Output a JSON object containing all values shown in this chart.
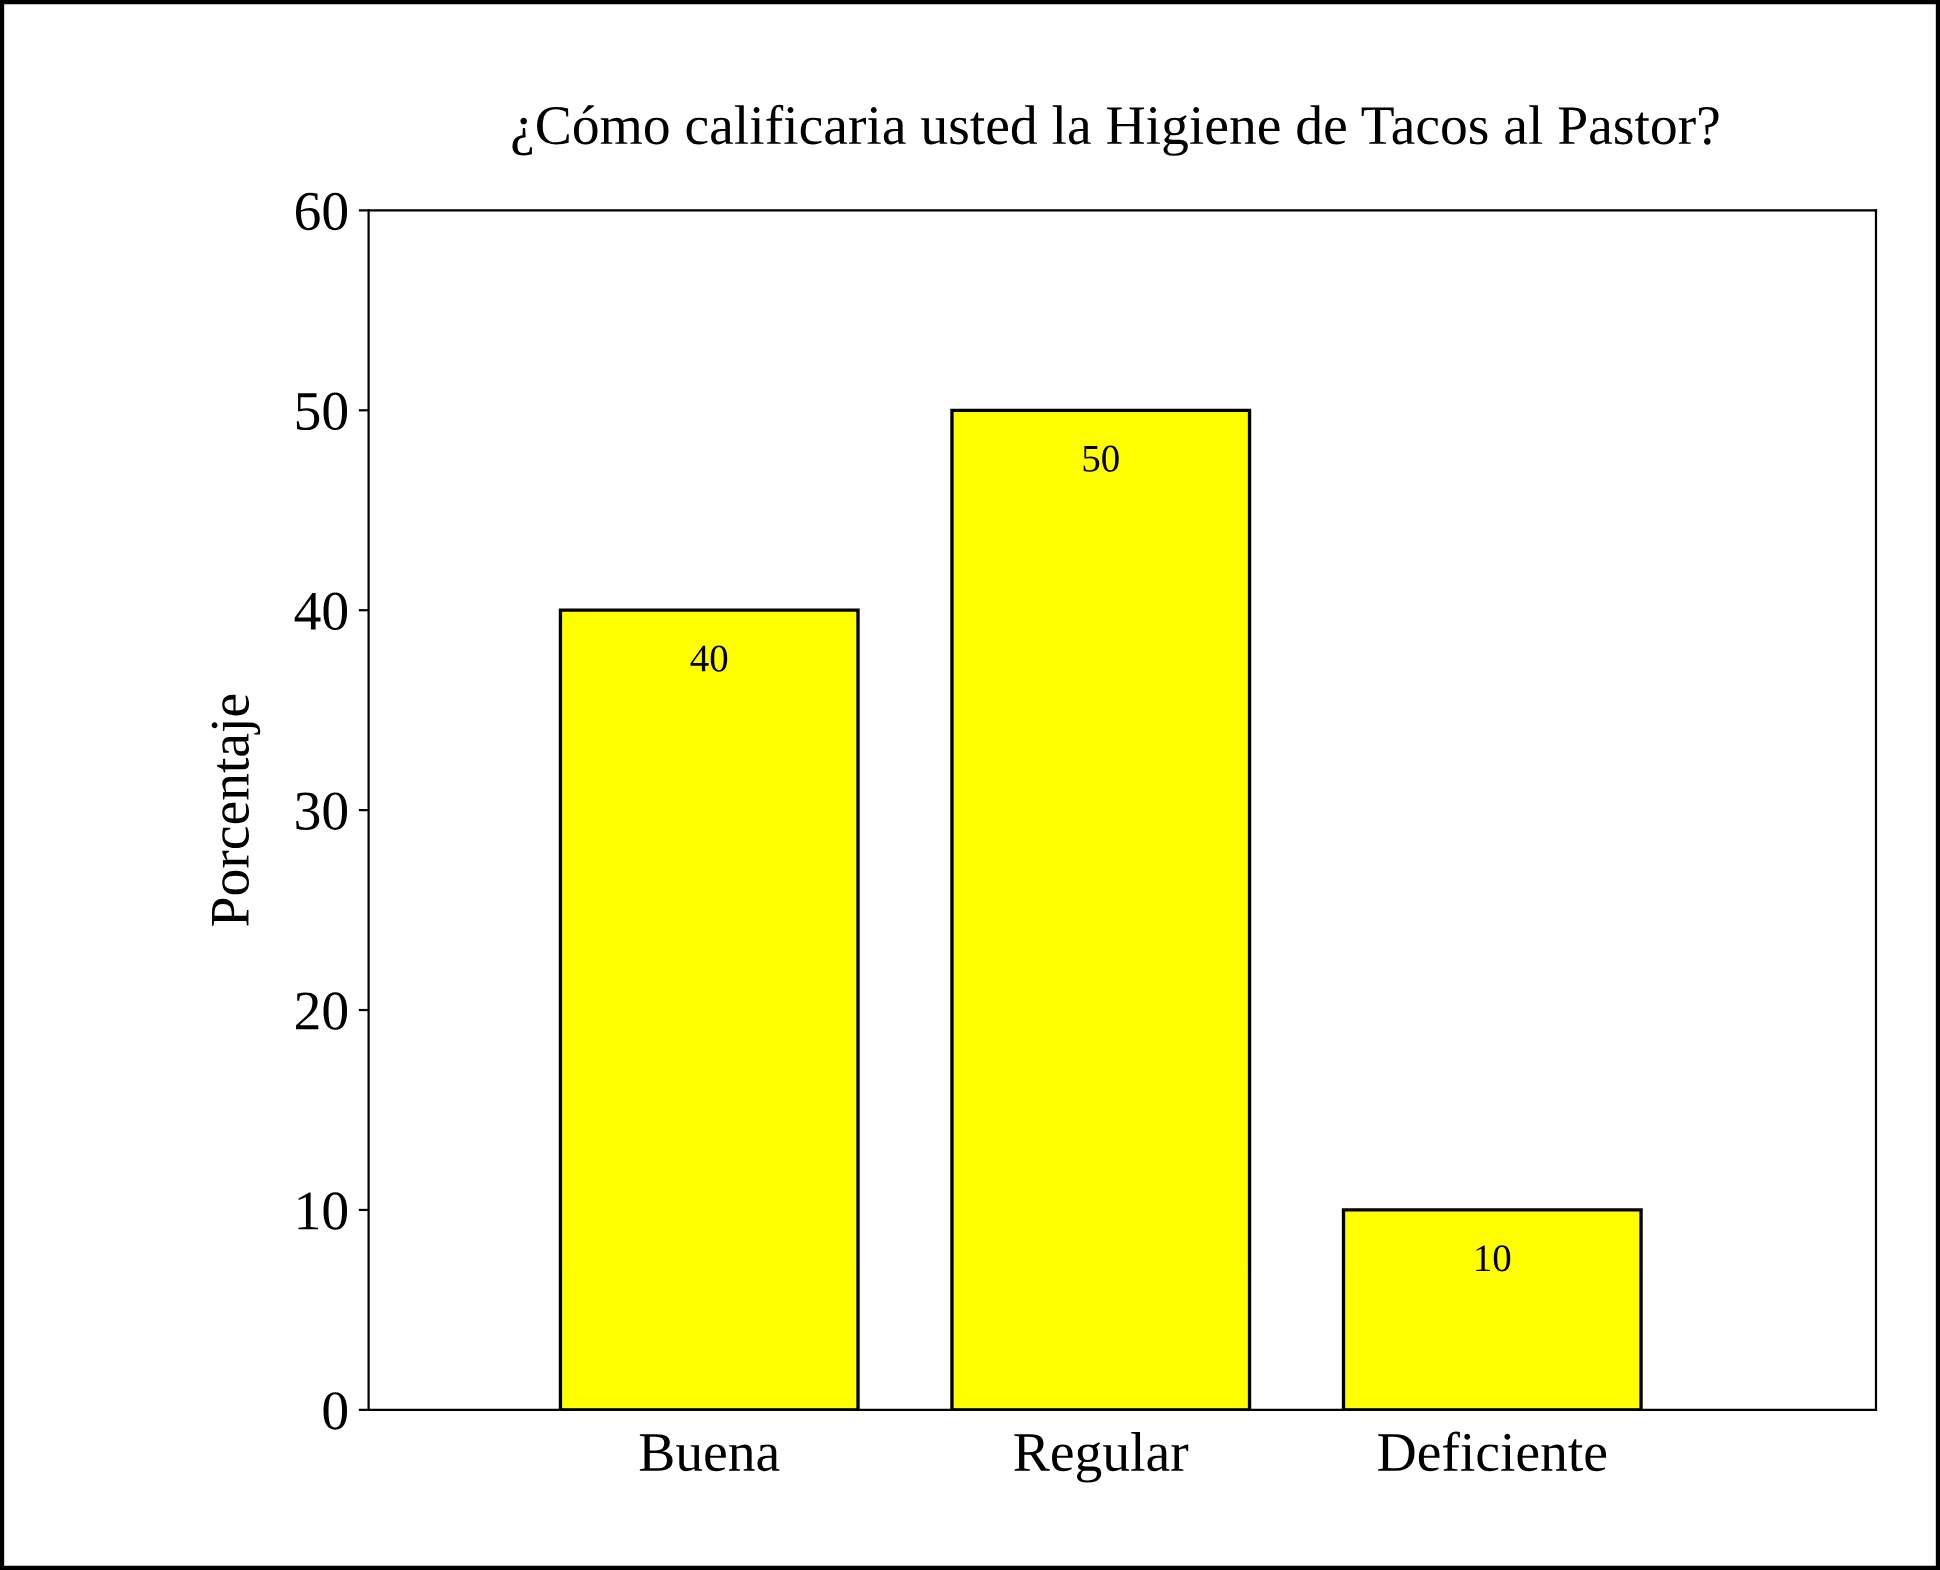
{
  "chart_data": {
    "type": "bar",
    "title": "¿Cómo calificaria usted la Higiene de Tacos al Pastor?",
    "ylabel": "Porcentaje",
    "categories": [
      "Buena",
      "Regular",
      "Deficiente"
    ],
    "values": [
      40,
      50,
      10
    ],
    "color": "#ffff00",
    "ylim": [
      0,
      60
    ],
    "yticks": [
      0,
      10,
      20,
      30,
      40,
      50,
      60
    ],
    "grid": false,
    "data_labels": true
  }
}
